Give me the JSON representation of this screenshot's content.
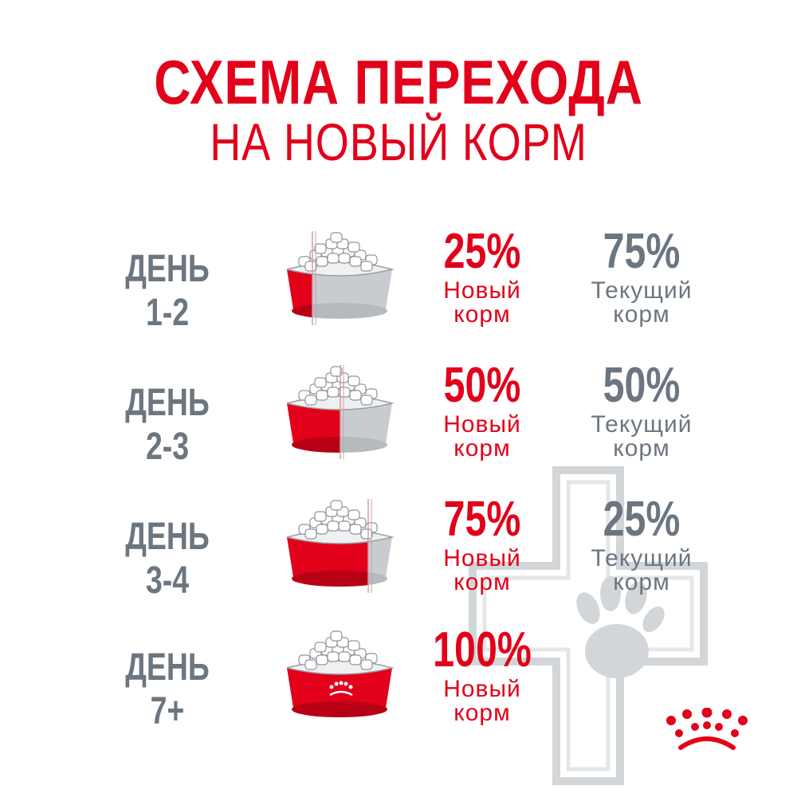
{
  "title": {
    "line1": "СХЕМА ПЕРЕХОДА",
    "line2": "НА НОВЫЙ  КОРМ"
  },
  "colors": {
    "brand_red": "#e2001a",
    "text_grey": "#6c7681",
    "bowl_grey": "#c8ccd0",
    "watermark_grey": "#d3d6d8"
  },
  "icons": [
    "bowl-icon",
    "crown-icon",
    "paw-icon",
    "medical-cross-icon"
  ],
  "rows": [
    {
      "day": "ДЕНЬ 1-2",
      "new_share": 0.25,
      "new_percent": "25%",
      "new_label_1": "Новый",
      "new_label_2": "корм",
      "current_percent": "75%",
      "current_label_1": "Текущий",
      "current_label_2": "корм"
    },
    {
      "day": "ДЕНЬ 2-3",
      "new_share": 0.5,
      "new_percent": "50%",
      "new_label_1": "Новый",
      "new_label_2": "корм",
      "current_percent": "50%",
      "current_label_1": "Текущий",
      "current_label_2": "корм"
    },
    {
      "day": "ДЕНЬ 3-4",
      "new_share": 0.75,
      "new_percent": "75%",
      "new_label_1": "Новый",
      "new_label_2": "корм",
      "current_percent": "25%",
      "current_label_1": "Текущий",
      "current_label_2": "корм"
    },
    {
      "day": "ДЕНЬ 7+",
      "new_share": 1.0,
      "new_percent": "100%",
      "new_label_1": "Новый",
      "new_label_2": "корм"
    }
  ]
}
